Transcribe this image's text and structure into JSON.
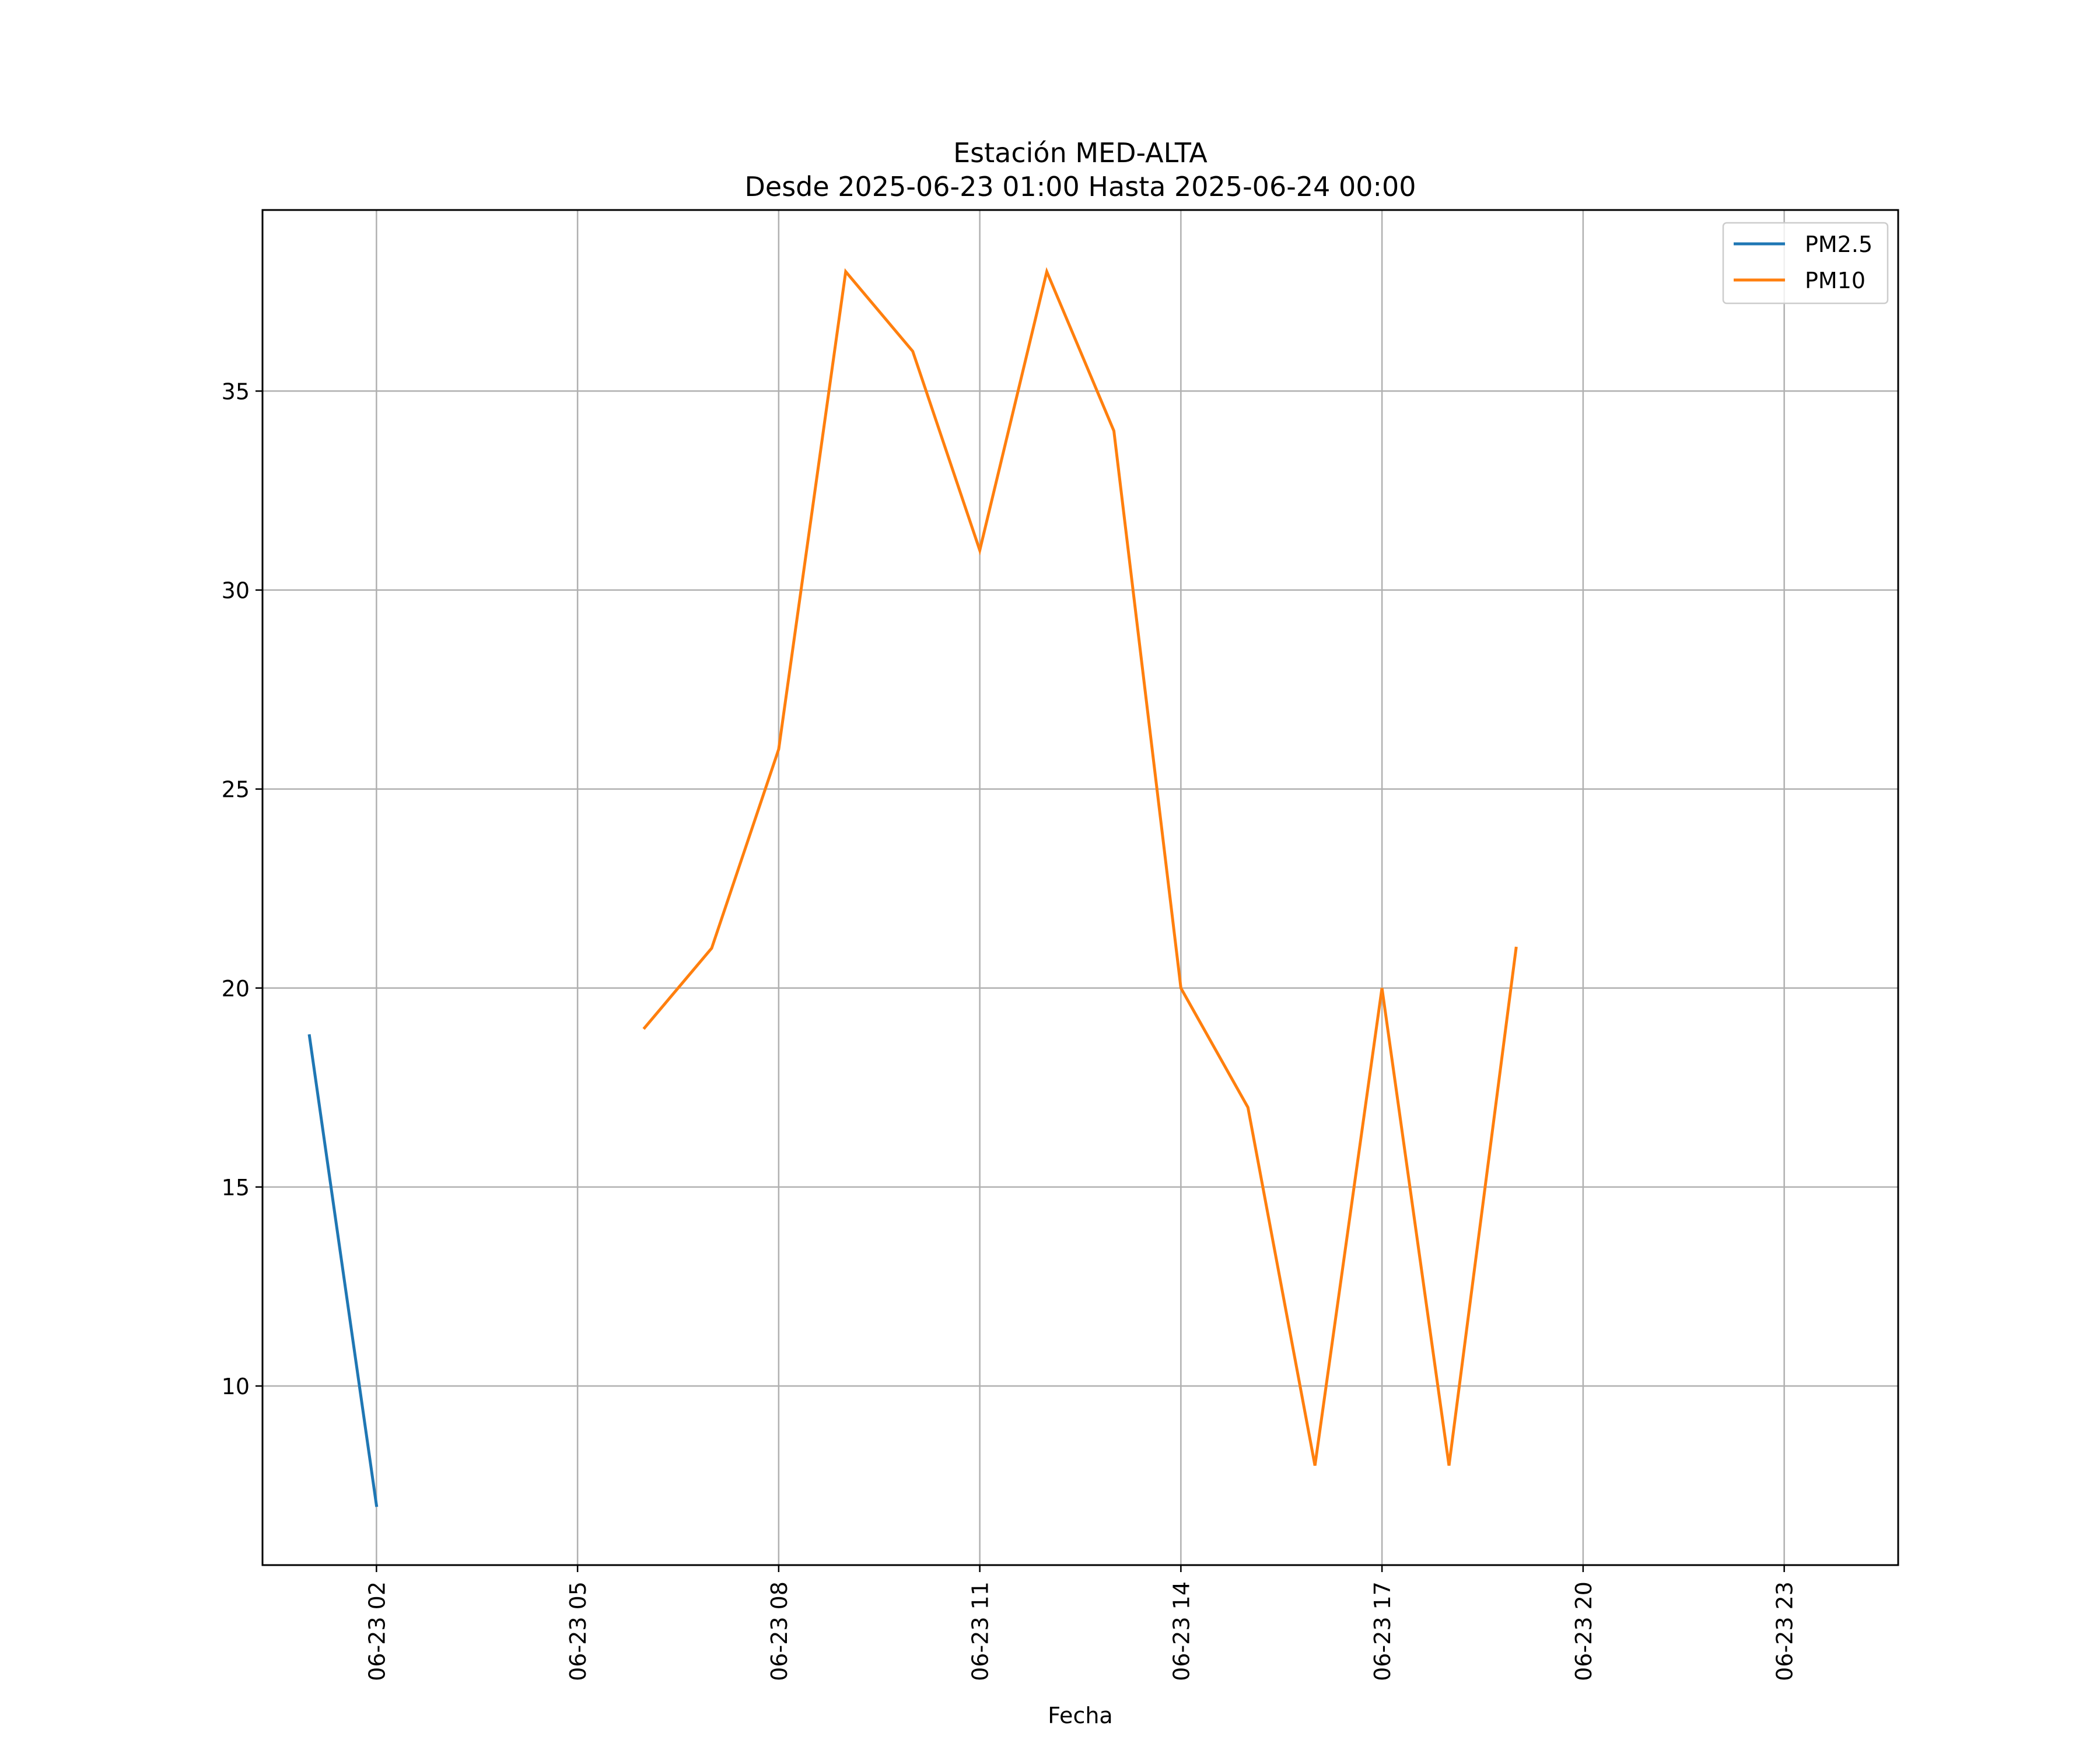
{
  "chart_data": {
    "type": "line",
    "title_line1": "Estación MED-ALTA",
    "title_line2": "Desde 2025-06-23 01:00 Hasta 2025-06-24 00:00",
    "xlabel": "Fecha",
    "ylabel": "",
    "x_range": [
      "2025-06-23 00:18",
      "2025-06-24 00:42"
    ],
    "ylim": [
      5.5,
      39.55
    ],
    "x_ticks": [
      {
        "x": "2025-06-23 02:00",
        "label": "06-23 02"
      },
      {
        "x": "2025-06-23 05:00",
        "label": "06-23 05"
      },
      {
        "x": "2025-06-23 08:00",
        "label": "06-23 08"
      },
      {
        "x": "2025-06-23 11:00",
        "label": "06-23 11"
      },
      {
        "x": "2025-06-23 14:00",
        "label": "06-23 14"
      },
      {
        "x": "2025-06-23 17:00",
        "label": "06-23 17"
      },
      {
        "x": "2025-06-23 20:00",
        "label": "06-23 20"
      },
      {
        "x": "2025-06-23 23:00",
        "label": "06-23 23"
      }
    ],
    "y_ticks": [
      10,
      15,
      20,
      25,
      30,
      35
    ],
    "grid": true,
    "legend_position": "top-right",
    "series": [
      {
        "name": "PM2.5",
        "color": "#1f77b4",
        "points": [
          {
            "x": "2025-06-23 01:00",
            "y": 18.8
          },
          {
            "x": "2025-06-23 02:00",
            "y": 7.0
          }
        ]
      },
      {
        "name": "PM10",
        "color": "#ff7f0e",
        "points": [
          {
            "x": "2025-06-23 06:00",
            "y": 19
          },
          {
            "x": "2025-06-23 07:00",
            "y": 21
          },
          {
            "x": "2025-06-23 08:00",
            "y": 26
          },
          {
            "x": "2025-06-23 09:00",
            "y": 38
          },
          {
            "x": "2025-06-23 10:00",
            "y": 36
          },
          {
            "x": "2025-06-23 11:00",
            "y": 31
          },
          {
            "x": "2025-06-23 12:00",
            "y": 38
          },
          {
            "x": "2025-06-23 13:00",
            "y": 34
          },
          {
            "x": "2025-06-23 14:00",
            "y": 20
          },
          {
            "x": "2025-06-23 15:00",
            "y": 17
          },
          {
            "x": "2025-06-23 16:00",
            "y": 8
          },
          {
            "x": "2025-06-23 17:00",
            "y": 20
          },
          {
            "x": "2025-06-23 18:00",
            "y": 8
          },
          {
            "x": "2025-06-23 19:00",
            "y": 21
          }
        ]
      }
    ]
  }
}
